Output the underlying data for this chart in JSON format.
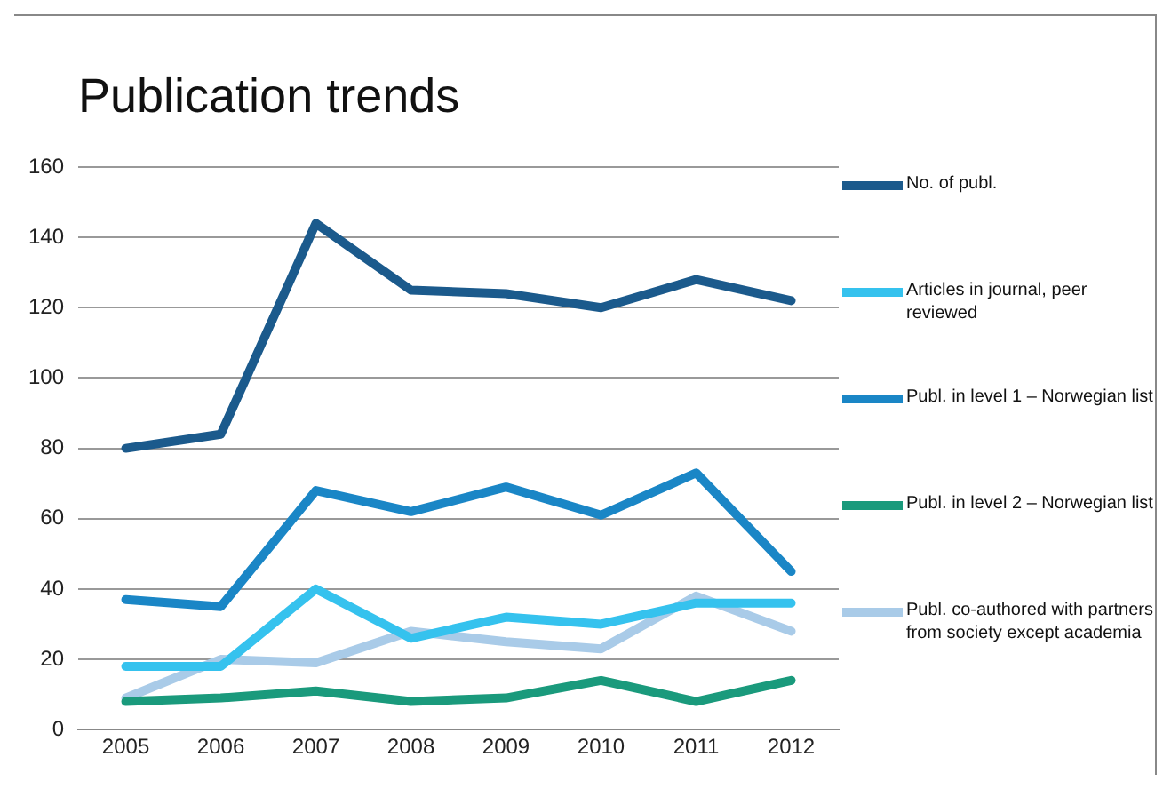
{
  "chart_data": {
    "type": "line",
    "title": "Publication trends",
    "categories": [
      "2005",
      "2006",
      "2007",
      "2008",
      "2009",
      "2010",
      "2011",
      "2012"
    ],
    "series": [
      {
        "name": "No. of publ.",
        "color": "#1b5a8c",
        "values": [
          80,
          84,
          144,
          125,
          124,
          120,
          128,
          122
        ]
      },
      {
        "name": "Articles in journal, peer reviewed",
        "color": "#35c2ee",
        "values": [
          18,
          18,
          40,
          26,
          32,
          30,
          36,
          36
        ]
      },
      {
        "name": "Publ. in level 1 – Norwegian list",
        "color": "#1a86c6",
        "values": [
          37,
          35,
          68,
          62,
          69,
          61,
          73,
          45
        ]
      },
      {
        "name": "Publ. in level 2 – Norwegian list",
        "color": "#1a9a7c",
        "values": [
          8,
          9,
          11,
          8,
          9,
          14,
          8,
          14
        ]
      },
      {
        "name": "Publ. co-authored with partners from society except academia",
        "color": "#a9cbe8",
        "values": [
          9,
          20,
          19,
          28,
          25,
          23,
          38,
          28
        ]
      }
    ],
    "ylim": [
      0,
      160
    ],
    "yticks": [
      0,
      20,
      40,
      60,
      80,
      100,
      120,
      140,
      160
    ],
    "grid": "y",
    "legend": "right",
    "marker": "none",
    "line_style": "solid"
  }
}
